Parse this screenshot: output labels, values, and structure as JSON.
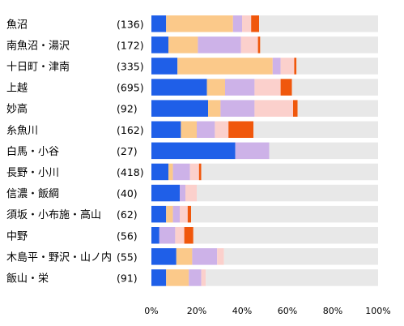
{
  "chart_data": {
    "type": "bar",
    "orientation": "horizontal",
    "stacked": true,
    "xlim": [
      0,
      100
    ],
    "x_ticks": [
      "0%",
      "20%",
      "40%",
      "60%",
      "80%",
      "100%"
    ],
    "grid": false,
    "legend": "none",
    "categories": [
      "魚沼",
      "南魚沼・湯沢",
      "十日町・津南",
      "上越",
      "妙高",
      "糸魚川",
      "白馬・小谷",
      "長野・小川",
      "信濃・飯綱",
      "須坂・小布施・高山",
      "中野",
      "木島平・野沢・山ノ内",
      "飯山・栄"
    ],
    "counts": [
      "(136)",
      "(172)",
      "(335)",
      "(695)",
      "(92)",
      "(162)",
      "(27)",
      "(418)",
      "(40)",
      "(62)",
      "(56)",
      "(55)",
      "(91)"
    ],
    "series": [
      {
        "color": "#1f5fe8",
        "values": [
          6.5,
          7.5,
          11.5,
          24.5,
          25,
          13,
          37,
          7.5,
          12.5,
          6.5,
          3.5,
          11,
          6.5
        ]
      },
      {
        "color": "#fbc98a",
        "values": [
          29.5,
          13,
          42,
          8,
          5.5,
          7,
          0,
          2,
          0,
          3,
          0,
          7,
          10
        ]
      },
      {
        "color": "#cdb2e8",
        "values": [
          4,
          19,
          3.5,
          13,
          15,
          8,
          15,
          7.5,
          2.5,
          3,
          7,
          11,
          5.5
        ]
      },
      {
        "color": "#fbd0cc",
        "values": [
          4,
          7.5,
          6,
          11.5,
          17,
          6,
          0,
          4,
          5,
          3.5,
          4,
          3,
          2
        ]
      },
      {
        "color": "#f0570c",
        "values": [
          3.5,
          1,
          1,
          5,
          2,
          11,
          0,
          1,
          0,
          1.5,
          4,
          0,
          0
        ]
      },
      {
        "color": "#e8e8e8",
        "values": [
          52.5,
          52,
          36,
          38,
          35.5,
          55,
          48,
          78,
          80,
          82.5,
          81.5,
          68,
          76
        ]
      }
    ]
  }
}
